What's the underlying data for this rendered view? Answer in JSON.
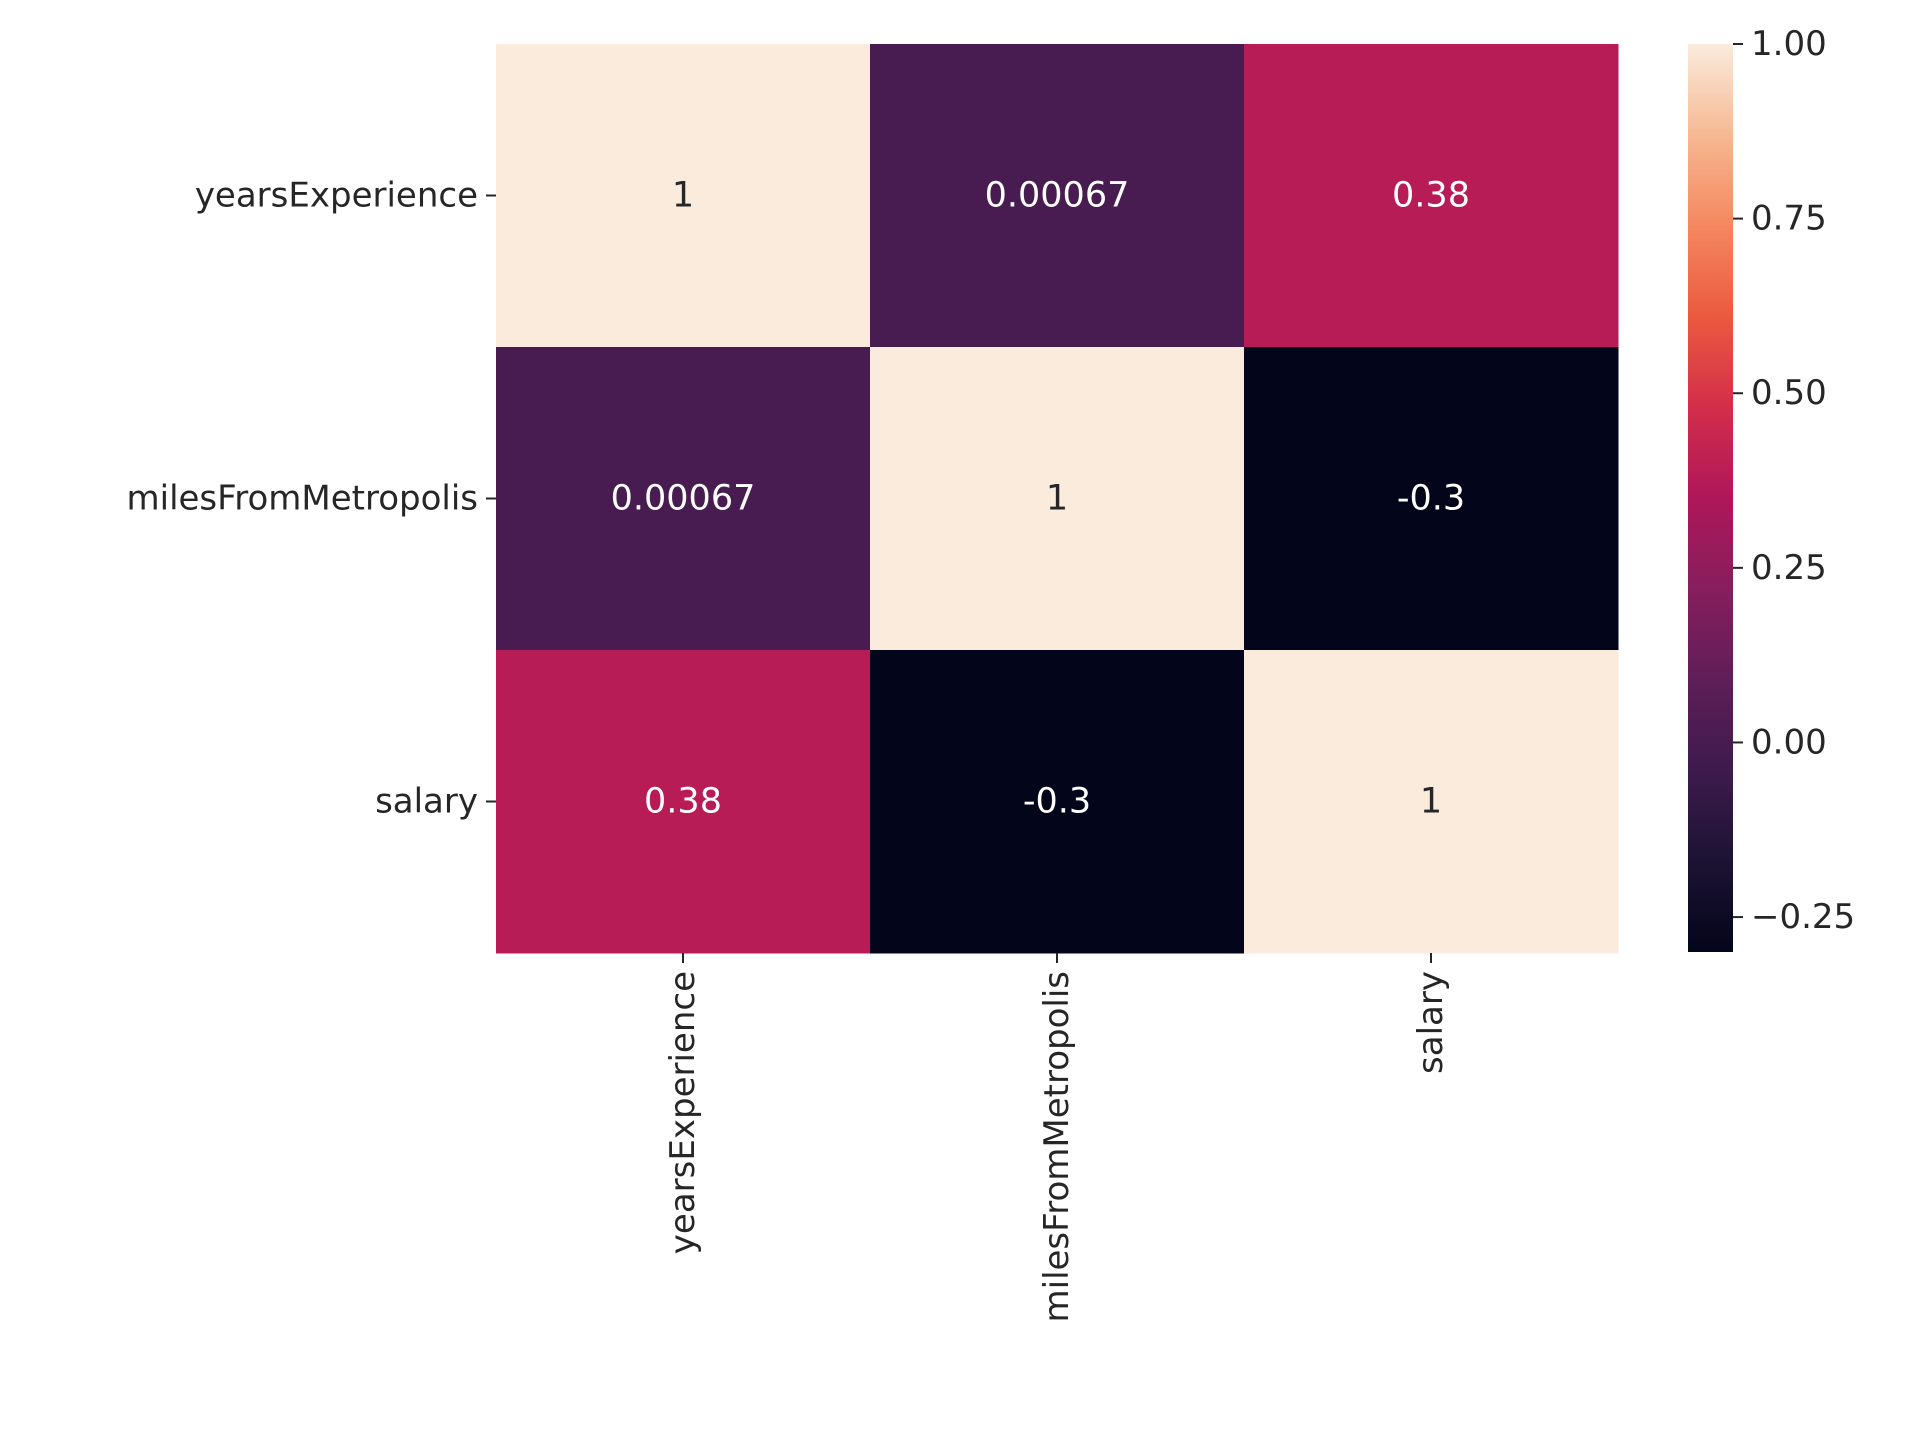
{
  "chart_data": {
    "type": "heatmap",
    "rows": [
      "yearsExperience",
      "milesFromMetropolis",
      "salary"
    ],
    "columns": [
      "yearsExperience",
      "milesFromMetropolis",
      "salary"
    ],
    "values": [
      [
        1,
        0.00067,
        0.38
      ],
      [
        0.00067,
        1,
        -0.3
      ],
      [
        0.38,
        -0.3,
        1
      ]
    ],
    "annotations": [
      [
        "1",
        "0.00067",
        "0.38"
      ],
      [
        "0.00067",
        "1",
        "-0.3"
      ],
      [
        "0.38",
        "-0.3",
        "1"
      ]
    ],
    "colormap": "rocket",
    "colorbar": {
      "range": [
        -0.3,
        1
      ],
      "ticks": [
        1.0,
        0.75,
        0.5,
        0.25,
        0.0,
        -0.25
      ],
      "tick_labels": [
        "1.00",
        "0.75",
        "0.50",
        "0.25",
        "0.00",
        "−0.25"
      ]
    },
    "title": "",
    "xlabel": "",
    "ylabel": ""
  }
}
